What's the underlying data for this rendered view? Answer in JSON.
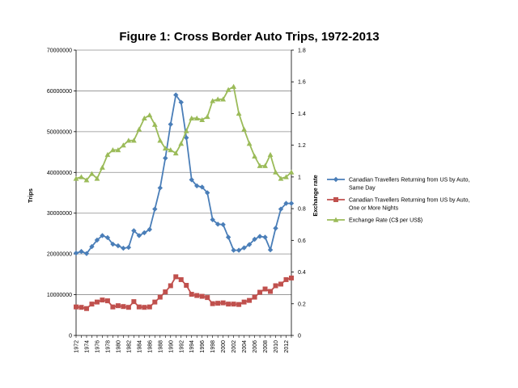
{
  "chart_data": {
    "type": "line",
    "title": "Figure 1: Cross Border Auto Trips, 1972-2013",
    "xlabel": "",
    "ylabel": "Trips",
    "y2label": "Exchange rate",
    "ylim": [
      0,
      70000000
    ],
    "y2lim": [
      0,
      1.8
    ],
    "grid": true,
    "legend_position": "right",
    "x": [
      1972,
      1973,
      1974,
      1975,
      1976,
      1977,
      1978,
      1979,
      1980,
      1981,
      1982,
      1983,
      1984,
      1985,
      1986,
      1987,
      1988,
      1989,
      1990,
      1991,
      1992,
      1993,
      1994,
      1995,
      1996,
      1997,
      1998,
      1999,
      2000,
      2001,
      2002,
      2003,
      2004,
      2005,
      2006,
      2007,
      2008,
      2009,
      2010,
      2011,
      2012,
      2013
    ],
    "x_tick_labels": [
      "1972",
      "1974",
      "1976",
      "1978",
      "1980",
      "1982",
      "1984",
      "1986",
      "1988",
      "1990",
      "1992",
      "1994",
      "1996",
      "1998",
      "2000",
      "2002",
      "2004",
      "2006",
      "2008",
      "2010",
      "2012"
    ],
    "y_tick_labels": [
      "0",
      "10000000",
      "20000000",
      "30000000",
      "40000000",
      "50000000",
      "60000000",
      "70000000"
    ],
    "y2_tick_labels": [
      "0",
      "0.2",
      "0.4",
      "0.6",
      "0.8",
      "1",
      "1.2",
      "1.4",
      "1.6",
      "1.8"
    ],
    "series": [
      {
        "name": "Canadian Travellers Returning from US by Auto, Same Day",
        "axis": "left",
        "color": "#4a7eb8",
        "marker": "diamond",
        "values": [
          20200000,
          20600000,
          20100000,
          21800000,
          23400000,
          24500000,
          24000000,
          22400000,
          22000000,
          21400000,
          21600000,
          25700000,
          24500000,
          25200000,
          26000000,
          31000000,
          36200000,
          43500000,
          51800000,
          59000000,
          57200000,
          48500000,
          38200000,
          36700000,
          36400000,
          35000000,
          28400000,
          27300000,
          27200000,
          24100000,
          20900000,
          20900000,
          21500000,
          22300000,
          23600000,
          24300000,
          24100000,
          21000000,
          26300000,
          31000000,
          32400000,
          32400000
        ]
      },
      {
        "name": "Canadian Travellers Returning from US by Auto, One or More Nights",
        "axis": "left",
        "color": "#c0504d",
        "marker": "square",
        "values": [
          7000000,
          6900000,
          6600000,
          7700000,
          8200000,
          8700000,
          8500000,
          7000000,
          7300000,
          7100000,
          6900000,
          8300000,
          7000000,
          6900000,
          7000000,
          8200000,
          9400000,
          10700000,
          12200000,
          14400000,
          13700000,
          12300000,
          10100000,
          9800000,
          9600000,
          9300000,
          7800000,
          7900000,
          8000000,
          7700000,
          7700000,
          7600000,
          8200000,
          8600000,
          9400000,
          10600000,
          11400000,
          10800000,
          12200000,
          12600000,
          13700000,
          14100000
        ]
      },
      {
        "name": "Exchange Rate (C$ per US$)",
        "axis": "right",
        "color": "#9bbb59",
        "marker": "triangle",
        "values": [
          0.99,
          1.0,
          0.98,
          1.02,
          0.99,
          1.06,
          1.14,
          1.17,
          1.17,
          1.2,
          1.23,
          1.23,
          1.3,
          1.37,
          1.39,
          1.33,
          1.23,
          1.18,
          1.17,
          1.15,
          1.21,
          1.29,
          1.37,
          1.37,
          1.36,
          1.38,
          1.48,
          1.49,
          1.49,
          1.55,
          1.57,
          1.4,
          1.3,
          1.21,
          1.13,
          1.07,
          1.07,
          1.14,
          1.03,
          0.99,
          1.0,
          1.03
        ]
      }
    ]
  }
}
